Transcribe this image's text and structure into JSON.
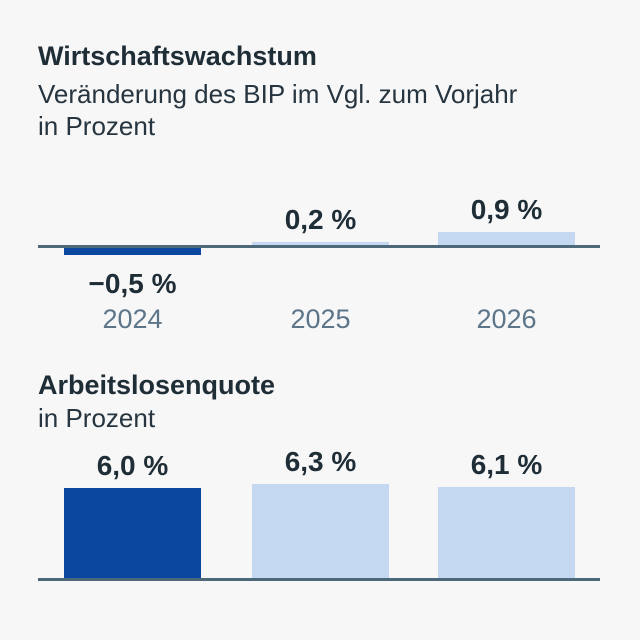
{
  "page": {
    "background": "#f7f7f8"
  },
  "colors": {
    "bar_highlight": "#0c479f",
    "bar_forecast": "#c5d8f2",
    "axis_line": "#4d6878",
    "text_dark": "#1f2d36",
    "text_year": "#5c7589"
  },
  "chart_data": [
    {
      "type": "bar",
      "title": "Wirtschaftswachstum",
      "subtitle_lines": [
        "Veränderung des BIP im Vgl. zum Vorjahr",
        "in Prozent"
      ],
      "categories": [
        "2024",
        "2025",
        "2026"
      ],
      "values": [
        -0.5,
        0.2,
        0.9
      ],
      "value_labels": [
        "−0,5 %",
        "0,2 %",
        "0,9 %"
      ],
      "bar_colors": [
        "#0c479f",
        "#c5d8f2",
        "#c5d8f2"
      ],
      "baseline": 0,
      "unit": "percent",
      "show_category_labels": true,
      "grid": false,
      "legend": false
    },
    {
      "type": "bar",
      "title": "Arbeitslosenquote",
      "subtitle_lines": [
        "in Prozent"
      ],
      "categories": [
        "2024",
        "2025",
        "2026"
      ],
      "values": [
        6.0,
        6.3,
        6.1
      ],
      "value_labels": [
        "6,0 %",
        "6,3 %",
        "6,1 %"
      ],
      "bar_colors": [
        "#0c479f",
        "#c5d8f2",
        "#c5d8f2"
      ],
      "baseline": 0,
      "unit": "percent",
      "show_category_labels": false,
      "grid": false,
      "legend": false
    }
  ]
}
